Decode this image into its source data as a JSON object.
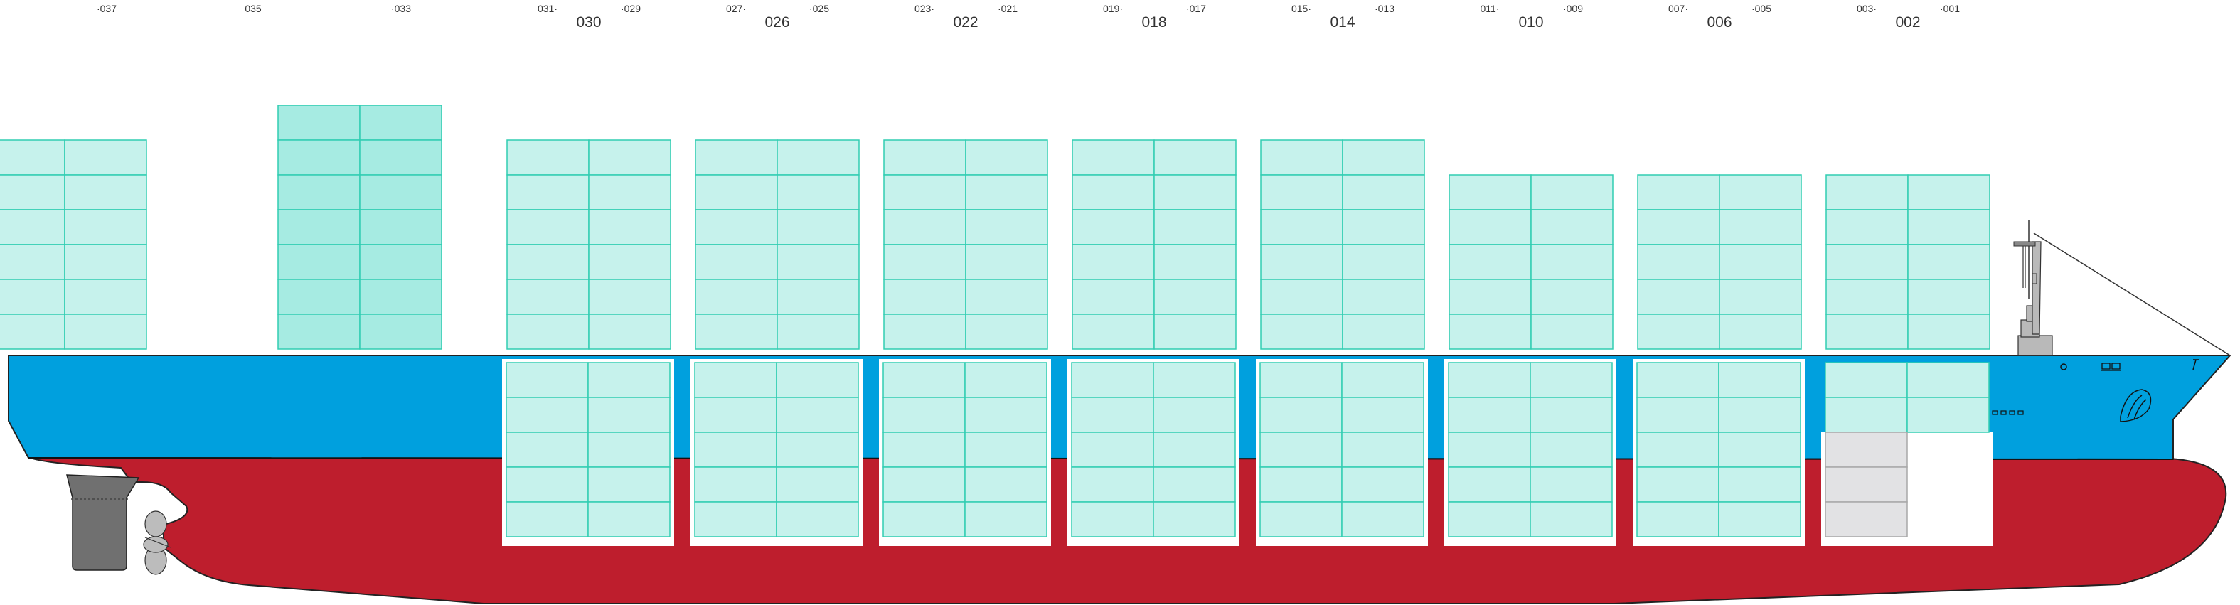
{
  "bay_labels": {
    "b037": "·037",
    "b035": "035",
    "b033": "·033",
    "b031": "031·",
    "b030": "030",
    "b029": "·029",
    "b027": "027·",
    "b026": "026",
    "b025": "·025",
    "b023": "023·",
    "b022": "022",
    "b021": "·021",
    "b019": "019·",
    "b018": "018",
    "b017": "·017",
    "b015": "015·",
    "b014": "014",
    "b013": "·013",
    "b011": "011·",
    "b010": "010",
    "b009": "·009",
    "b007": "007·",
    "b006": "006",
    "b005": "·005",
    "b003": "003·",
    "b002": "002",
    "b001": "·001"
  },
  "deck_stacks": {
    "bay_037": {
      "tiers": 6
    },
    "bay_033": {
      "tiers": 7
    },
    "bay_030": {
      "tiers": 6
    },
    "bay_026": {
      "tiers": 6
    },
    "bay_022": {
      "tiers": 6
    },
    "bay_018": {
      "tiers": 6
    },
    "bay_014": {
      "tiers": 6
    },
    "bay_010": {
      "tiers": 5
    },
    "bay_006": {
      "tiers": 5
    },
    "bay_002": {
      "tiers": 5
    }
  },
  "hold_stacks": {
    "bay_030": {
      "tiers": 5
    },
    "bay_026": {
      "tiers": 5
    },
    "bay_022": {
      "tiers": 5
    },
    "bay_018": {
      "tiers": 5
    },
    "bay_014": {
      "tiers": 5
    },
    "bay_010": {
      "tiers": 5
    },
    "bay_006": {
      "tiers": 5
    },
    "bay_002": {
      "tiers": 2,
      "grey_tiers": 3
    }
  },
  "colors": {
    "topsides_blue": "#00a0de",
    "hull_red": "#be1e2d",
    "container_fill": "#c6f2ec",
    "container_fill_dark": "#a6ebe2",
    "container_stroke": "#30cdb2",
    "grey_container": "#e2e2e4",
    "rudder": "#707070",
    "propeller": "#bcbcbc"
  }
}
